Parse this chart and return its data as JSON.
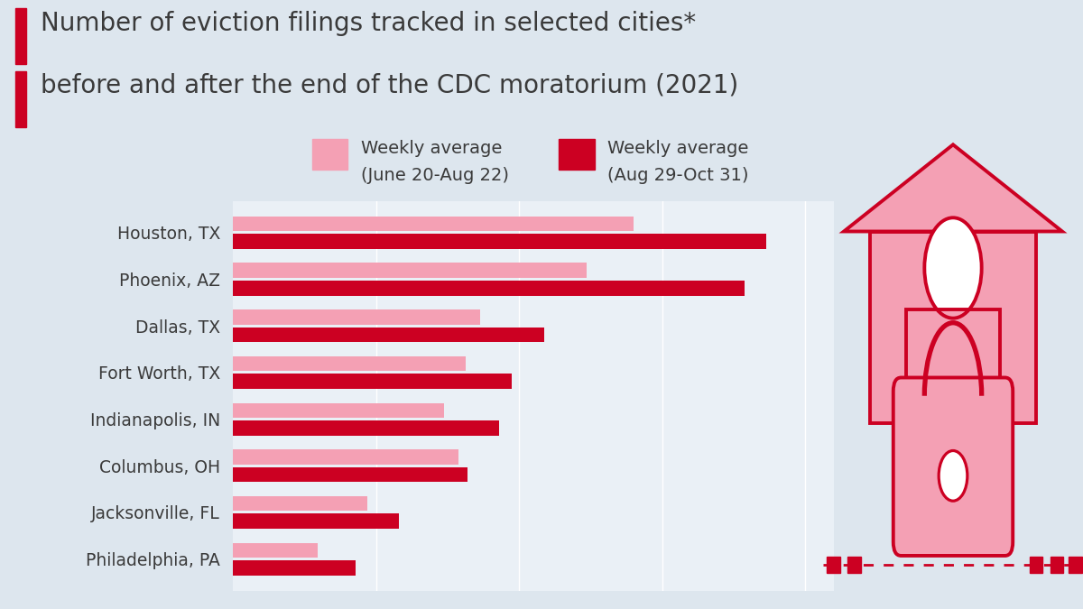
{
  "title_line1": "Number of eviction filings tracked in selected cities*",
  "title_line2": "before and after the end of the CDC moratorium (2021)",
  "background_color": "#dde6ee",
  "chart_bg_color": "#eaf0f6",
  "cities": [
    "Houston, TX",
    "Phoenix, AZ",
    "Dallas, TX",
    "Fort Worth, TX",
    "Indianapolis, IN",
    "Columbus, OH",
    "Jacksonville, FL",
    "Philadelphia, PA"
  ],
  "before_values": [
    560,
    495,
    345,
    325,
    295,
    315,
    188,
    118
  ],
  "after_values": [
    745,
    715,
    435,
    390,
    372,
    328,
    232,
    172
  ],
  "before_color": "#f4a0b4",
  "after_color": "#cc0022",
  "title_color": "#3a3a3a",
  "bar_height": 0.32,
  "accent_color_top": "#cc0022",
  "accent_color_bot": "#cc0022",
  "house_fill": "#f4a0b4",
  "house_stroke": "#cc0022"
}
